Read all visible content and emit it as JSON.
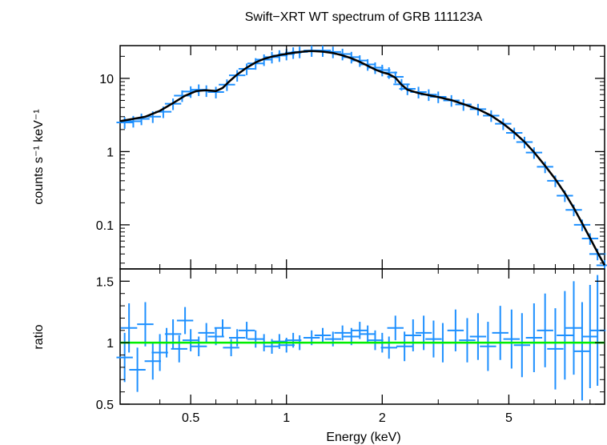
{
  "chart_data": [
    {
      "type": "scatter",
      "title": "Swift−XRT WT spectrum of GRB 111123A",
      "ylabel": "counts s⁻¹ keV⁻¹",
      "xscale": "log",
      "yscale": "log",
      "xlim": [
        0.3,
        10
      ],
      "ylim": [
        0.025,
        28
      ],
      "yticks": [
        {
          "value": 10,
          "label": "10"
        },
        {
          "value": 1,
          "label": "1"
        },
        {
          "value": 0.1,
          "label": "0.1"
        }
      ],
      "grid": false,
      "series": [
        {
          "kind": "data-with-errorbars",
          "color": "#1e90ff",
          "x": [
            0.31,
            0.33,
            0.35,
            0.38,
            0.41,
            0.44,
            0.47,
            0.5,
            0.53,
            0.56,
            0.6,
            0.65,
            0.7,
            0.75,
            0.8,
            0.85,
            0.9,
            0.95,
            1.0,
            1.05,
            1.1,
            1.2,
            1.3,
            1.4,
            1.5,
            1.6,
            1.7,
            1.8,
            1.9,
            2.0,
            2.1,
            2.2,
            2.3,
            2.4,
            2.6,
            2.8,
            3.0,
            3.3,
            3.6,
            4.0,
            4.4,
            4.8,
            5.2,
            5.6,
            6.0,
            6.5,
            7.0,
            7.5,
            8.0,
            8.5,
            9.0,
            9.5,
            10.0
          ],
          "y": [
            2.5,
            2.6,
            2.8,
            3.0,
            3.5,
            4.5,
            5.8,
            6.6,
            7.0,
            6.8,
            6.5,
            8.2,
            11,
            13.5,
            16,
            18,
            19.5,
            20.5,
            21.5,
            22.5,
            23,
            24,
            24,
            23,
            21.5,
            19.5,
            17.5,
            15.5,
            14,
            13,
            12,
            10.5,
            8.3,
            7.2,
            6.5,
            6.0,
            5.6,
            5.0,
            4.4,
            3.8,
            3.1,
            2.4,
            1.8,
            1.35,
            0.97,
            0.62,
            0.4,
            0.25,
            0.16,
            0.1,
            0.065,
            0.04,
            0.028
          ],
          "yerr_frac": 0.18
        },
        {
          "kind": "model",
          "color": "#000000",
          "x": [
            0.3,
            0.33,
            0.36,
            0.4,
            0.44,
            0.48,
            0.52,
            0.56,
            0.6,
            0.63,
            0.66,
            0.7,
            0.75,
            0.8,
            0.85,
            0.9,
            0.95,
            1.0,
            1.05,
            1.1,
            1.15,
            1.2,
            1.3,
            1.4,
            1.5,
            1.6,
            1.7,
            1.8,
            1.9,
            2.0,
            2.1,
            2.2,
            2.3,
            2.4,
            2.6,
            2.8,
            3.0,
            3.3,
            3.6,
            4.0,
            4.4,
            4.8,
            5.2,
            5.6,
            6.0,
            6.5,
            7.0,
            7.5,
            8.0,
            8.5,
            9.0,
            9.5,
            10.0
          ],
          "y": [
            2.6,
            2.8,
            3.0,
            3.6,
            4.6,
            5.8,
            6.7,
            6.9,
            6.7,
            7.4,
            9.0,
            11.3,
            14,
            16.5,
            18.5,
            19.8,
            20.8,
            21.6,
            22.3,
            22.9,
            23.4,
            23.6,
            23.2,
            22.2,
            20.6,
            18.8,
            16.8,
            14.9,
            13.2,
            12.1,
            11.4,
            10.2,
            8.2,
            7.0,
            6.3,
            5.9,
            5.55,
            5.05,
            4.45,
            3.8,
            3.1,
            2.4,
            1.82,
            1.36,
            0.98,
            0.64,
            0.42,
            0.27,
            0.17,
            0.105,
            0.066,
            0.042,
            0.028
          ]
        }
      ]
    },
    {
      "type": "scatter",
      "xlabel": "Energy (keV)",
      "ylabel": "ratio",
      "xscale": "log",
      "xlim": [
        0.3,
        10
      ],
      "ylim": [
        0.5,
        1.6
      ],
      "xticks": [
        {
          "value": 0.5,
          "label": "0.5"
        },
        {
          "value": 1,
          "label": "1"
        },
        {
          "value": 2,
          "label": "2"
        },
        {
          "value": 5,
          "label": "5"
        }
      ],
      "yticks": [
        {
          "value": 1.5,
          "label": "1.5"
        },
        {
          "value": 1,
          "label": "1"
        },
        {
          "value": 0.5,
          "label": "0.5"
        }
      ],
      "grid": false,
      "reference_line": {
        "y": 1,
        "color": "#00ee00"
      },
      "series": [
        {
          "kind": "ratio-with-errorbars",
          "color": "#1e90ff",
          "x": [
            0.31,
            0.32,
            0.34,
            0.36,
            0.38,
            0.4,
            0.42,
            0.44,
            0.46,
            0.48,
            0.5,
            0.53,
            0.56,
            0.6,
            0.63,
            0.67,
            0.7,
            0.75,
            0.8,
            0.85,
            0.9,
            0.95,
            1.0,
            1.05,
            1.1,
            1.2,
            1.3,
            1.4,
            1.5,
            1.6,
            1.7,
            1.8,
            1.9,
            2.0,
            2.1,
            2.2,
            2.35,
            2.5,
            2.7,
            2.9,
            3.1,
            3.4,
            3.7,
            4.0,
            4.3,
            4.7,
            5.1,
            5.5,
            6.0,
            6.5,
            7.0,
            7.5,
            8.0,
            8.5,
            9.0,
            9.5
          ],
          "y": [
            0.88,
            1.12,
            0.78,
            1.15,
            0.85,
            0.92,
            1.0,
            1.07,
            0.95,
            1.18,
            1.02,
            0.97,
            1.08,
            1.05,
            1.12,
            0.96,
            1.04,
            1.1,
            1.03,
            1.0,
            0.97,
            1.01,
            0.98,
            1.02,
            1.0,
            1.04,
            1.06,
            1.03,
            1.08,
            1.05,
            1.1,
            1.07,
            1.02,
            1.0,
            0.96,
            1.12,
            0.97,
            1.06,
            1.08,
            1.03,
            1.0,
            1.1,
            1.02,
            1.05,
            0.97,
            1.08,
            1.03,
            0.98,
            1.04,
            1.1,
            0.95,
            1.06,
            1.12,
            0.93,
            1.05,
            1.1
          ],
          "yerr": [
            0.2,
            0.2,
            0.18,
            0.18,
            0.15,
            0.15,
            0.12,
            0.12,
            0.11,
            0.11,
            0.09,
            0.08,
            0.08,
            0.07,
            0.07,
            0.07,
            0.07,
            0.07,
            0.07,
            0.07,
            0.06,
            0.06,
            0.06,
            0.06,
            0.06,
            0.06,
            0.06,
            0.06,
            0.06,
            0.07,
            0.07,
            0.07,
            0.08,
            0.08,
            0.09,
            0.1,
            0.12,
            0.13,
            0.14,
            0.15,
            0.16,
            0.17,
            0.18,
            0.19,
            0.2,
            0.22,
            0.24,
            0.26,
            0.28,
            0.3,
            0.33,
            0.36,
            0.38,
            0.4,
            0.42,
            0.45
          ]
        }
      ]
    }
  ]
}
